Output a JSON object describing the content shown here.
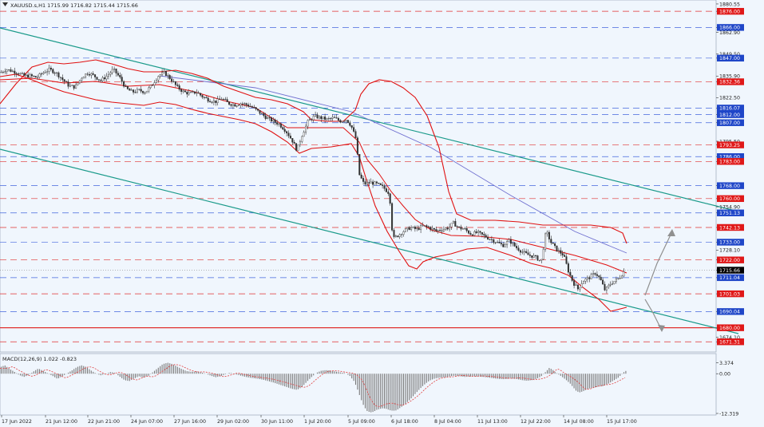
{
  "header": {
    "title": "XAUUSD.s,H1 1715.99 1716.82 1715.44 1715.66"
  },
  "indicator": {
    "title": "MACD(12,26,9) 1.022 -0.823"
  },
  "colors": {
    "background": "#f0f6fd",
    "grid_red": "#e03030",
    "grid_blue": "#4466dd",
    "channel": "#1a9a8a",
    "bollinger": "#e01010",
    "ma": "#7070d0",
    "candle": "#303030",
    "arrow": "#909090",
    "tag_red": "#e01818",
    "tag_blue": "#1f46c8",
    "tag_current": "#000000"
  },
  "chart_data": {
    "type": "candlestick",
    "symbol": "XAUUSD.s",
    "timeframe": "H1",
    "ylim": [
      1665.0,
      1883.0
    ],
    "y_ticks": [
      "1880.55",
      "1876.00",
      "1866.00",
      "1862.90",
      "1849.50",
      "1847.00",
      "1835.90",
      "1832.36",
      "1822.50",
      "1816.07",
      "1812.00",
      "1807.00",
      "1795.50",
      "1793.25",
      "1786.00",
      "1783.00",
      "1768.00",
      "1760.00",
      "1754.90",
      "1751.13",
      "1742.13",
      "1733.00",
      "1728.10",
      "1722.00",
      "1715.66",
      "1711.04",
      "1701.03",
      "1690.04",
      "1680.00",
      "1674.10",
      "1671.31"
    ],
    "price_tags": [
      {
        "label": "1876.00",
        "value": 1876.0,
        "kind": "red"
      },
      {
        "label": "1866.00",
        "value": 1866.0,
        "kind": "blue"
      },
      {
        "label": "1847.00",
        "value": 1847.0,
        "kind": "blue"
      },
      {
        "label": "1832.36",
        "value": 1832.36,
        "kind": "red"
      },
      {
        "label": "1816.07",
        "value": 1816.07,
        "kind": "blue"
      },
      {
        "label": "1812.00",
        "value": 1812.0,
        "kind": "blue"
      },
      {
        "label": "1807.00",
        "value": 1807.0,
        "kind": "blue"
      },
      {
        "label": "1793.25",
        "value": 1793.25,
        "kind": "red"
      },
      {
        "label": "1786.00",
        "value": 1786.0,
        "kind": "blue"
      },
      {
        "label": "1783.00",
        "value": 1783.0,
        "kind": "red"
      },
      {
        "label": "1768.00",
        "value": 1768.0,
        "kind": "blue"
      },
      {
        "label": "1760.00",
        "value": 1760.0,
        "kind": "red"
      },
      {
        "label": "1751.13",
        "value": 1751.13,
        "kind": "blue"
      },
      {
        "label": "1742.13",
        "value": 1742.13,
        "kind": "red"
      },
      {
        "label": "1733.00",
        "value": 1733.0,
        "kind": "blue"
      },
      {
        "label": "1722.00",
        "value": 1722.0,
        "kind": "red"
      },
      {
        "label": "1715.66",
        "value": 1715.66,
        "kind": "current"
      },
      {
        "label": "1711.04",
        "value": 1711.04,
        "kind": "blue"
      },
      {
        "label": "1701.03",
        "value": 1701.03,
        "kind": "red"
      },
      {
        "label": "1690.04",
        "value": 1690.04,
        "kind": "blue"
      },
      {
        "label": "1680.00",
        "value": 1680.0,
        "kind": "red"
      },
      {
        "label": "1671.31",
        "value": 1671.31,
        "kind": "red"
      }
    ],
    "x_labels": [
      "17 Jun 2022",
      "21 Jun 12:00",
      "22 Jun 21:00",
      "24 Jun 07:00",
      "27 Jun 16:00",
      "29 Jun 02:00",
      "30 Jun 11:00",
      "1 Jul 20:00",
      "5 Jul 09:00",
      "6 Jul 18:00",
      "8 Jul 04:00",
      "11 Jul 13:00",
      "12 Jul 22:00",
      "14 Jul 08:00",
      "15 Jul 17:00"
    ],
    "close_path": [
      [
        0,
        1838
      ],
      [
        8,
        1840
      ],
      [
        15,
        1839
      ],
      [
        22,
        1838
      ],
      [
        30,
        1836
      ],
      [
        38,
        1836
      ],
      [
        46,
        1835
      ],
      [
        54,
        1838
      ],
      [
        62,
        1840
      ],
      [
        70,
        1838
      ],
      [
        78,
        1834
      ],
      [
        86,
        1830
      ],
      [
        94,
        1829
      ],
      [
        102,
        1835
      ],
      [
        110,
        1838
      ],
      [
        118,
        1836
      ],
      [
        126,
        1833
      ],
      [
        134,
        1836
      ],
      [
        142,
        1840
      ],
      [
        150,
        1835
      ],
      [
        158,
        1828
      ],
      [
        166,
        1826
      ],
      [
        174,
        1827
      ],
      [
        182,
        1826
      ],
      [
        190,
        1830
      ],
      [
        198,
        1836
      ],
      [
        206,
        1838
      ],
      [
        214,
        1834
      ],
      [
        222,
        1829
      ],
      [
        230,
        1826
      ],
      [
        238,
        1825
      ],
      [
        246,
        1826
      ],
      [
        254,
        1823
      ],
      [
        262,
        1821
      ],
      [
        270,
        1820
      ],
      [
        278,
        1822
      ],
      [
        286,
        1819
      ],
      [
        294,
        1818
      ],
      [
        302,
        1819
      ],
      [
        310,
        1818
      ],
      [
        318,
        1816
      ],
      [
        326,
        1813
      ],
      [
        334,
        1810
      ],
      [
        342,
        1808
      ],
      [
        350,
        1806
      ],
      [
        358,
        1802
      ],
      [
        366,
        1796
      ],
      [
        372,
        1790
      ],
      [
        378,
        1799
      ],
      [
        386,
        1808
      ],
      [
        394,
        1811
      ],
      [
        402,
        1810
      ],
      [
        410,
        1809
      ],
      [
        418,
        1810
      ],
      [
        426,
        1808
      ],
      [
        434,
        1809
      ],
      [
        440,
        1805
      ],
      [
        446,
        1797
      ],
      [
        450,
        1775
      ],
      [
        456,
        1769
      ],
      [
        464,
        1770
      ],
      [
        472,
        1769
      ],
      [
        480,
        1767
      ],
      [
        488,
        1763
      ],
      [
        492,
        1735
      ],
      [
        498,
        1737
      ],
      [
        506,
        1740
      ],
      [
        514,
        1742
      ],
      [
        522,
        1741
      ],
      [
        530,
        1743
      ],
      [
        538,
        1742
      ],
      [
        546,
        1740
      ],
      [
        554,
        1741
      ],
      [
        562,
        1742
      ],
      [
        568,
        1745
      ],
      [
        574,
        1742
      ],
      [
        582,
        1741
      ],
      [
        590,
        1738
      ],
      [
        598,
        1739
      ],
      [
        606,
        1737
      ],
      [
        614,
        1735
      ],
      [
        622,
        1733
      ],
      [
        630,
        1731
      ],
      [
        638,
        1734
      ],
      [
        646,
        1730
      ],
      [
        654,
        1727
      ],
      [
        662,
        1725
      ],
      [
        670,
        1724
      ],
      [
        678,
        1721
      ],
      [
        684,
        1740
      ],
      [
        690,
        1733
      ],
      [
        698,
        1728
      ],
      [
        706,
        1725
      ],
      [
        712,
        1715
      ],
      [
        718,
        1708
      ],
      [
        724,
        1704
      ],
      [
        730,
        1709
      ],
      [
        738,
        1711
      ],
      [
        746,
        1714
      ],
      [
        752,
        1710
      ],
      [
        758,
        1703
      ],
      [
        764,
        1707
      ],
      [
        770,
        1709
      ],
      [
        776,
        1711
      ],
      [
        782,
        1715
      ]
    ],
    "macd": {
      "ylim": [
        -12.319,
        5.5
      ],
      "ticks": [
        "3.374",
        "0.00",
        "-12.319"
      ],
      "histogram": [
        [
          0,
          2.0
        ],
        [
          6,
          2.6
        ],
        [
          12,
          1.5
        ],
        [
          18,
          0.6
        ],
        [
          24,
          -0.4
        ],
        [
          30,
          -1.0
        ],
        [
          36,
          -0.4
        ],
        [
          42,
          0.7
        ],
        [
          48,
          1.6
        ],
        [
          54,
          0.9
        ],
        [
          60,
          0.1
        ],
        [
          66,
          -0.7
        ],
        [
          72,
          -1.6
        ],
        [
          78,
          -0.8
        ],
        [
          84,
          0.1
        ],
        [
          90,
          1.0
        ],
        [
          96,
          2.0
        ],
        [
          102,
          2.6
        ],
        [
          108,
          2.1
        ],
        [
          114,
          1.0
        ],
        [
          120,
          0.1
        ],
        [
          126,
          -0.5
        ],
        [
          132,
          -0.1
        ],
        [
          138,
          0.5
        ],
        [
          144,
          0.3
        ],
        [
          150,
          -0.9
        ],
        [
          156,
          -2.0
        ],
        [
          162,
          -2.3
        ],
        [
          168,
          -1.5
        ],
        [
          174,
          -0.8
        ],
        [
          180,
          -1.2
        ],
        [
          186,
          -0.7
        ],
        [
          192,
          0.6
        ],
        [
          198,
          1.8
        ],
        [
          204,
          3.0
        ],
        [
          210,
          3.4
        ],
        [
          216,
          3.0
        ],
        [
          222,
          2.2
        ],
        [
          228,
          1.4
        ],
        [
          234,
          0.8
        ],
        [
          240,
          0.6
        ],
        [
          246,
          0.7
        ],
        [
          252,
          0.4
        ],
        [
          258,
          0.0
        ],
        [
          264,
          -0.6
        ],
        [
          270,
          -1.1
        ],
        [
          276,
          -0.8
        ],
        [
          282,
          -0.2
        ],
        [
          288,
          0.3
        ],
        [
          294,
          -0.1
        ],
        [
          300,
          -0.5
        ],
        [
          306,
          -0.9
        ],
        [
          312,
          -1.2
        ],
        [
          318,
          -1.4
        ],
        [
          324,
          -1.6
        ],
        [
          330,
          -1.9
        ],
        [
          336,
          -2.3
        ],
        [
          342,
          -2.7
        ],
        [
          348,
          -3.2
        ],
        [
          354,
          -3.7
        ],
        [
          360,
          -4.2
        ],
        [
          366,
          -4.7
        ],
        [
          372,
          -5.0
        ],
        [
          378,
          -4.2
        ],
        [
          384,
          -2.6
        ],
        [
          390,
          -1.1
        ],
        [
          396,
          0.2
        ],
        [
          402,
          0.9
        ],
        [
          408,
          1.1
        ],
        [
          414,
          1.0
        ],
        [
          420,
          0.7
        ],
        [
          426,
          0.4
        ],
        [
          432,
          0.2
        ],
        [
          438,
          -0.6
        ],
        [
          444,
          -2.5
        ],
        [
          448,
          -5.0
        ],
        [
          452,
          -7.8
        ],
        [
          456,
          -10.2
        ],
        [
          460,
          -11.6
        ],
        [
          464,
          -12.0
        ],
        [
          468,
          -11.8
        ],
        [
          472,
          -11.2
        ],
        [
          476,
          -10.9
        ],
        [
          480,
          -10.7
        ],
        [
          484,
          -10.9
        ],
        [
          488,
          -11.3
        ],
        [
          492,
          -11.5
        ],
        [
          496,
          -11.4
        ],
        [
          500,
          -10.8
        ],
        [
          504,
          -10.1
        ],
        [
          508,
          -9.3
        ],
        [
          512,
          -8.4
        ],
        [
          516,
          -7.4
        ],
        [
          520,
          -6.3
        ],
        [
          524,
          -5.2
        ],
        [
          528,
          -4.2
        ],
        [
          532,
          -3.3
        ],
        [
          536,
          -2.5
        ],
        [
          540,
          -1.9
        ],
        [
          546,
          -1.4
        ],
        [
          552,
          -1.2
        ],
        [
          558,
          -1.1
        ],
        [
          564,
          -0.8
        ],
        [
          570,
          -0.6
        ],
        [
          576,
          -0.8
        ],
        [
          582,
          -1.0
        ],
        [
          588,
          -0.9
        ],
        [
          594,
          -0.8
        ],
        [
          600,
          -0.9
        ],
        [
          606,
          -1.0
        ],
        [
          612,
          -1.2
        ],
        [
          618,
          -1.4
        ],
        [
          624,
          -1.6
        ],
        [
          630,
          -1.7
        ],
        [
          636,
          -1.6
        ],
        [
          642,
          -1.5
        ],
        [
          648,
          -1.7
        ],
        [
          654,
          -2.0
        ],
        [
          660,
          -2.2
        ],
        [
          666,
          -2.0
        ],
        [
          672,
          -1.6
        ],
        [
          678,
          -0.8
        ],
        [
          684,
          0.7
        ],
        [
          688,
          1.8
        ],
        [
          692,
          1.3
        ],
        [
          696,
          0.4
        ],
        [
          702,
          -0.6
        ],
        [
          708,
          -1.7
        ],
        [
          714,
          -3.0
        ],
        [
          718,
          -4.2
        ],
        [
          722,
          -5.4
        ],
        [
          726,
          -5.8
        ],
        [
          730,
          -5.5
        ],
        [
          734,
          -5.0
        ],
        [
          738,
          -4.6
        ],
        [
          742,
          -4.4
        ],
        [
          746,
          -4.2
        ],
        [
          750,
          -4.0
        ],
        [
          754,
          -3.9
        ],
        [
          758,
          -3.6
        ],
        [
          762,
          -3.1
        ],
        [
          766,
          -2.5
        ],
        [
          770,
          -1.9
        ],
        [
          774,
          -1.3
        ],
        [
          778,
          -0.4
        ],
        [
          782,
          0.6
        ],
        [
          785,
          1.0
        ]
      ]
    }
  }
}
